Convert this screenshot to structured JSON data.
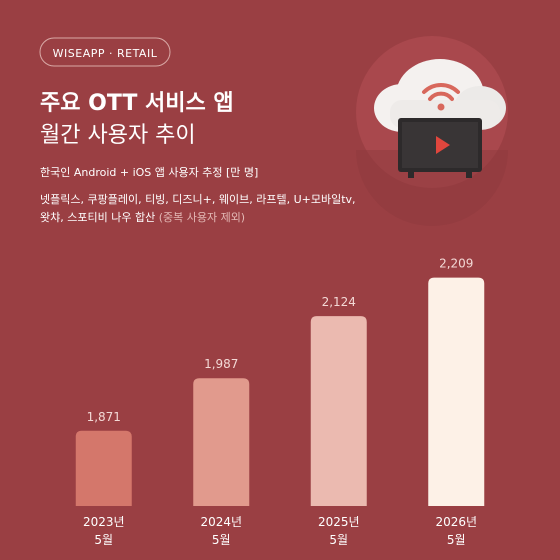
{
  "brand": "WISEAPP · RETAIL",
  "chart_data": {
    "type": "bar",
    "title": [
      "주요 OTT 서비스 앱",
      "월간 사용자 추이"
    ],
    "subtitle": "한국인 Android + iOS 앱 사용자 추정 [만 명]",
    "note": [
      "넷플릭스, 쿠팡플레이, 티빙, 디즈니+, 웨이브, 라프텔, U+모바일tv,",
      "왓챠, 스포티비 나우 합산",
      "(중복 사용자 제외)"
    ],
    "categories": [
      [
        "2023년",
        "5월"
      ],
      [
        "2024년",
        "5월"
      ],
      [
        "2025년",
        "5월"
      ],
      [
        "2026년",
        "5월"
      ]
    ],
    "values": [
      1871,
      1987,
      2124,
      2209
    ],
    "value_labels": [
      "1,871",
      "1,987",
      "2,124",
      "2,209"
    ],
    "colors": [
      "#d4776b",
      "#e19a8d",
      "#ebbab0",
      "#fdf1e7"
    ],
    "ylim": [
      1705,
      2248
    ]
  }
}
